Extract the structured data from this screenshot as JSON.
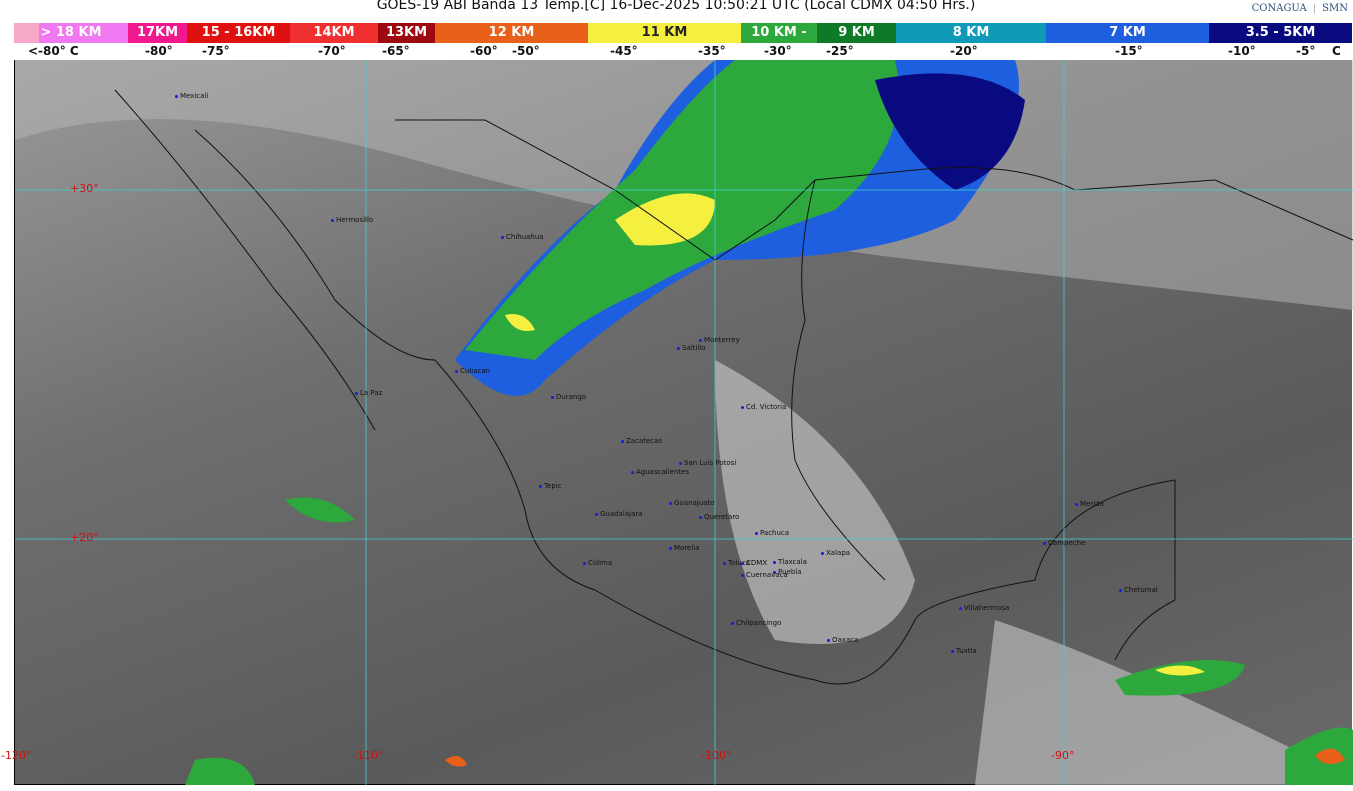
{
  "title": "GOES-19 ABI Banda 13 Temp.[C] 16-Dec-2025 10:50:21 UTC (Local CDMX  04:50 Hrs.)",
  "logos": {
    "conagua": "CONAGUA",
    "smn": "SMN"
  },
  "colorbar": {
    "segments": [
      {
        "label": "> 18 KM",
        "color": "#f078f0"
      },
      {
        "label": "17KM",
        "color": "#f0188c"
      },
      {
        "label": "15 - 16KM",
        "color": "#e01010"
      },
      {
        "label": "14KM",
        "color": "#f03030"
      },
      {
        "label": "13KM",
        "color": "#9c0a10"
      },
      {
        "label": "12 KM",
        "color": "#e8601a"
      },
      {
        "label": "11 KM",
        "color": "#f5f040"
      },
      {
        "label": "10 KM -",
        "color": "#2ca83c"
      },
      {
        "label": "9 KM",
        "color": "#0e7a28"
      },
      {
        "label": "8 KM",
        "color": "#109ab8"
      },
      {
        "label": "7 KM",
        "color": "#1e5fe0"
      },
      {
        "label": "3.5 - 5KM",
        "color": "#0a0a80"
      }
    ],
    "ticks": [
      "<-80° C",
      "-80°",
      "-75°",
      "-70°",
      "-65°",
      "-60°",
      "-50°",
      "-45°",
      "-35°",
      "-30°",
      "-25°",
      "-20°",
      "-15°",
      "-10°",
      "-5°",
      "C"
    ]
  },
  "grid": {
    "lat": [
      "+30°",
      "+20°"
    ],
    "lon": [
      "-120°",
      "-110°",
      "-100°",
      "-90°"
    ],
    "color": "#40d0d0",
    "label_color": "#d01010"
  },
  "cities": [
    "Mexicali",
    "Hermosillo",
    "Chihuahua",
    "Culiacan",
    "La Paz",
    "Durango",
    "Saltillo",
    "Monterrey",
    "Cd. Victoria",
    "Zacatecas",
    "San Luis Potosi",
    "Aguascalientes",
    "Tepic",
    "Guanajuato",
    "Guadalajara",
    "Queretaro",
    "Pachuca",
    "Morelia",
    "Colima",
    "Toluca",
    "CDMX",
    "Tlaxcala",
    "Xalapa",
    "Puebla",
    "Cuernavaca",
    "Chilpancingo",
    "Oaxaca",
    "Villahermosa",
    "Tuxtla",
    "Merida",
    "Campeche",
    "Chetumal"
  ]
}
